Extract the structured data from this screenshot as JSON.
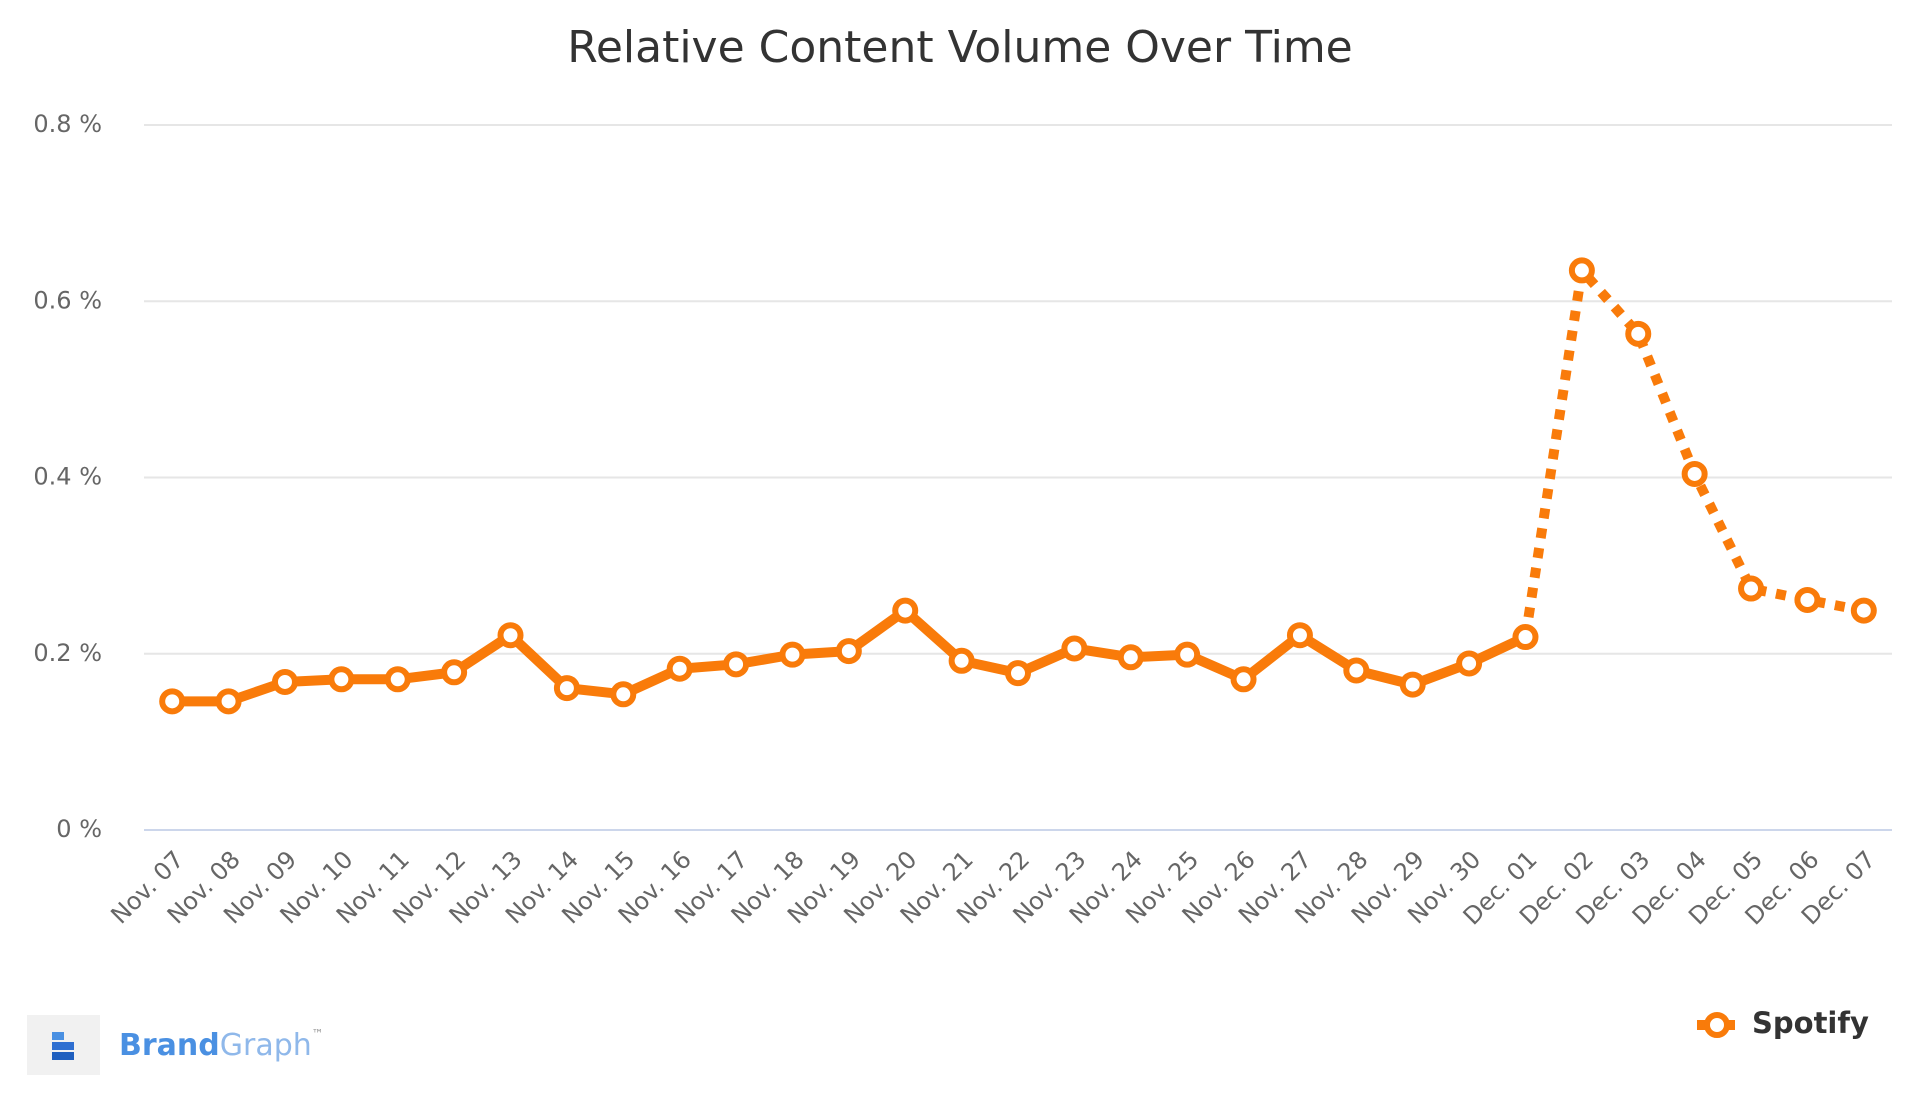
{
  "chart_data": {
    "type": "line",
    "title": "Relative Content Volume Over Time",
    "categories": [
      "Nov. 07",
      "Nov. 08",
      "Nov. 09",
      "Nov. 10",
      "Nov. 11",
      "Nov. 12",
      "Nov. 13",
      "Nov. 14",
      "Nov. 15",
      "Nov. 16",
      "Nov. 17",
      "Nov. 18",
      "Nov. 19",
      "Nov. 20",
      "Nov. 21",
      "Nov. 22",
      "Nov. 23",
      "Nov. 24",
      "Nov. 25",
      "Nov. 26",
      "Nov. 27",
      "Nov. 28",
      "Nov. 29",
      "Nov. 30",
      "Dec. 01",
      "Dec. 02",
      "Dec. 03",
      "Dec. 04",
      "Dec. 05",
      "Dec. 06",
      "Dec. 07"
    ],
    "series": [
      {
        "name": "Spotify",
        "color": "#f97b0a",
        "values": [
          0.146,
          0.146,
          0.168,
          0.171,
          0.171,
          0.179,
          0.221,
          0.161,
          0.154,
          0.183,
          0.188,
          0.199,
          0.203,
          0.249,
          0.192,
          0.178,
          0.206,
          0.196,
          0.199,
          0.171,
          0.221,
          0.181,
          0.165,
          0.189,
          0.219,
          0.635,
          0.563,
          0.404,
          0.274,
          0.261,
          0.249
        ],
        "dash_start": "Dec. 01"
      }
    ],
    "ylim": [
      0,
      0.8
    ],
    "yticks": [
      {
        "value": 0,
        "label": "0 %"
      },
      {
        "value": 0.2,
        "label": "0.2 %"
      },
      {
        "value": 0.4,
        "label": "0.4 %"
      },
      {
        "value": 0.6,
        "label": "0.6 %"
      },
      {
        "value": 0.8,
        "label": "0.8 %"
      }
    ],
    "grid": true,
    "legend": "bottom-right"
  },
  "branding": {
    "brand": "Brand",
    "graph": "Graph",
    "tm": "™"
  }
}
